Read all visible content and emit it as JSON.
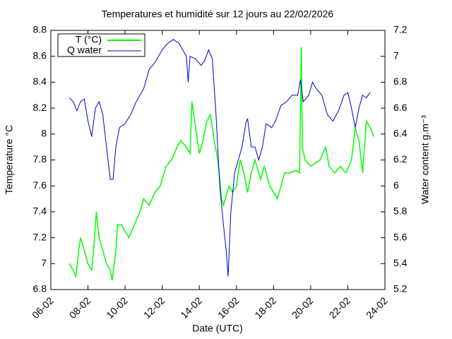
{
  "chart_data": {
    "type": "line",
    "title": "Temperatures et humidité sur 12 jours au 22/02/2026",
    "xlabel": "Date (UTC)",
    "ylabel": "Temperature °C",
    "y2label": "Water content g.m⁻³",
    "xlim": [
      6,
      24
    ],
    "xticks": [
      {
        "value": 6,
        "label": "06-02"
      },
      {
        "value": 8,
        "label": "08-02"
      },
      {
        "value": 10,
        "label": "10-02"
      },
      {
        "value": 12,
        "label": "12-02"
      },
      {
        "value": 14,
        "label": "14-02"
      },
      {
        "value": 16,
        "label": "16-02"
      },
      {
        "value": 18,
        "label": "18-02"
      },
      {
        "value": 20,
        "label": "20-02"
      },
      {
        "value": 22,
        "label": "22-02"
      },
      {
        "value": 24,
        "label": "24-02"
      }
    ],
    "ylim": [
      6.8,
      8.8
    ],
    "yticks": [
      6.8,
      7,
      7.2,
      7.4,
      7.6,
      7.8,
      8,
      8.2,
      8.4,
      8.6,
      8.8
    ],
    "y2lim": [
      5.2,
      7.2
    ],
    "y2ticks": [
      5.2,
      5.4,
      5.6,
      5.8,
      6,
      6.2,
      6.4,
      6.6,
      6.8,
      7,
      7.2
    ],
    "legend": "upper left",
    "series": [
      {
        "name": "T (°C)",
        "color": "#00ff00",
        "axis": "y",
        "x": [
          7.0,
          7.2,
          7.35,
          7.5,
          7.6,
          7.8,
          8.0,
          8.2,
          8.3,
          8.45,
          8.6,
          8.8,
          9.0,
          9.2,
          9.3,
          9.5,
          9.6,
          9.8,
          10.0,
          10.2,
          10.5,
          10.8,
          11.0,
          11.3,
          11.6,
          11.9,
          12.2,
          12.5,
          12.8,
          13.0,
          13.3,
          13.5,
          13.6,
          13.8,
          14.0,
          14.2,
          14.4,
          14.6,
          14.8,
          15.0,
          15.2,
          15.3,
          15.5,
          15.6,
          15.8,
          16.0,
          16.2,
          16.4,
          16.6,
          16.8,
          17.0,
          17.3,
          17.5,
          17.8,
          18.0,
          18.2,
          18.4,
          18.6,
          18.9,
          19.2,
          19.4,
          19.5,
          19.55,
          19.7,
          20.0,
          20.3,
          20.5,
          20.8,
          21.0,
          21.3,
          21.6,
          21.9,
          22.2,
          22.4,
          22.6,
          22.8,
          23.0,
          23.2,
          23.4
        ],
        "values": [
          7.0,
          6.95,
          6.9,
          7.1,
          7.2,
          7.1,
          7.0,
          6.95,
          7.1,
          7.4,
          7.2,
          7.1,
          7.0,
          6.95,
          6.87,
          7.1,
          7.3,
          7.3,
          7.25,
          7.2,
          7.3,
          7.4,
          7.5,
          7.45,
          7.55,
          7.6,
          7.75,
          7.8,
          7.9,
          7.95,
          7.9,
          7.85,
          8.25,
          8.05,
          7.85,
          7.95,
          8.1,
          8.15,
          7.95,
          7.8,
          7.5,
          7.45,
          7.55,
          7.6,
          7.55,
          7.6,
          7.8,
          7.7,
          7.55,
          7.7,
          7.8,
          7.65,
          7.75,
          7.6,
          7.55,
          7.5,
          7.6,
          7.7,
          7.7,
          7.72,
          7.7,
          8.67,
          7.9,
          7.8,
          7.75,
          7.78,
          7.8,
          7.9,
          7.75,
          7.7,
          7.75,
          7.7,
          7.8,
          8.05,
          7.95,
          7.7,
          8.1,
          8.05,
          7.98
        ]
      },
      {
        "name": "Q water",
        "color": "#0000cc",
        "axis": "y2",
        "x": [
          7.0,
          7.2,
          7.4,
          7.6,
          7.8,
          8.0,
          8.2,
          8.4,
          8.6,
          8.8,
          9.0,
          9.2,
          9.35,
          9.5,
          9.7,
          10.0,
          10.3,
          10.6,
          11.0,
          11.3,
          11.6,
          12.0,
          12.3,
          12.6,
          12.9,
          13.1,
          13.3,
          13.4,
          13.5,
          13.8,
          14.1,
          14.3,
          14.5,
          14.7,
          14.9,
          15.1,
          15.3,
          15.45,
          15.55,
          15.7,
          15.9,
          16.1,
          16.3,
          16.5,
          16.6,
          16.8,
          17.0,
          17.2,
          17.4,
          17.6,
          17.9,
          18.1,
          18.4,
          18.7,
          19.0,
          19.3,
          19.45,
          19.6,
          19.9,
          20.1,
          20.3,
          20.6,
          20.9,
          21.2,
          21.5,
          21.8,
          22.0,
          22.2,
          22.4,
          22.6,
          22.8,
          23.0,
          23.2
        ],
        "values": [
          6.68,
          6.65,
          6.58,
          6.65,
          6.67,
          6.5,
          6.38,
          6.6,
          6.65,
          6.55,
          6.3,
          6.05,
          6.05,
          6.3,
          6.45,
          6.48,
          6.55,
          6.65,
          6.75,
          6.9,
          6.95,
          7.05,
          7.1,
          7.13,
          7.1,
          7.05,
          7.0,
          6.8,
          7.0,
          6.98,
          6.93,
          6.97,
          7.05,
          6.98,
          6.55,
          6.0,
          5.7,
          5.5,
          5.3,
          5.8,
          6.1,
          6.2,
          6.3,
          6.48,
          6.52,
          6.3,
          6.3,
          6.2,
          6.3,
          6.48,
          6.45,
          6.5,
          6.62,
          6.65,
          6.7,
          6.7,
          6.82,
          6.65,
          6.7,
          6.8,
          6.75,
          6.7,
          6.55,
          6.5,
          6.58,
          6.7,
          6.72,
          6.6,
          6.45,
          6.6,
          6.7,
          6.68,
          6.72
        ]
      }
    ]
  }
}
